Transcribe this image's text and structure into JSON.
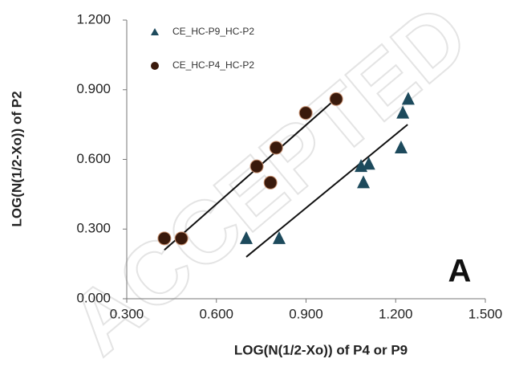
{
  "chart_data": {
    "type": "scatter",
    "x_label": "LOG(N(1/2-Xo)) of P4 or P9",
    "y_label": "LOG(N(1/2-Xo)) of P2",
    "annotation": "A",
    "watermark": "ACCEPTED",
    "xlim": [
      0.3,
      1.5
    ],
    "ylim": [
      0.0,
      1.2
    ],
    "xticks": [
      {
        "value": 0.3,
        "label": "0.300"
      },
      {
        "value": 0.6,
        "label": "0.600"
      },
      {
        "value": 0.9,
        "label": "0.900"
      },
      {
        "value": 1.2,
        "label": "1.200"
      },
      {
        "value": 1.5,
        "label": "1.500"
      }
    ],
    "yticks": [
      {
        "value": 0.0,
        "label": "0.000"
      },
      {
        "value": 0.3,
        "label": "0.300"
      },
      {
        "value": 0.6,
        "label": "0.600"
      },
      {
        "value": 0.9,
        "label": "0.900"
      },
      {
        "value": 1.2,
        "label": "1.200"
      }
    ],
    "legend_position": "upper left",
    "series": [
      {
        "name": "CE_HC-P9_HC-P2",
        "color": "#1d4a5c",
        "marker": "triangle",
        "x": [
          0.7,
          0.81,
          1.084,
          1.11,
          1.092,
          1.218,
          1.224,
          1.242
        ],
        "values": [
          0.26,
          0.26,
          0.57,
          0.58,
          0.5,
          0.65,
          0.8,
          0.86
        ],
        "trendline": {
          "x": [
            0.7,
            1.24
          ],
          "values": [
            0.18,
            0.75
          ]
        }
      },
      {
        "name": "CE_HC-P4_HC-P2",
        "color": "#3a1a0c",
        "marker": "circle",
        "x": [
          0.426,
          0.483,
          0.735,
          0.781,
          0.8,
          0.899,
          1.001
        ],
        "values": [
          0.26,
          0.26,
          0.57,
          0.5,
          0.65,
          0.8,
          0.86
        ],
        "trendline": {
          "x": [
            0.426,
            1.003
          ],
          "values": [
            0.21,
            0.865
          ]
        }
      }
    ]
  }
}
